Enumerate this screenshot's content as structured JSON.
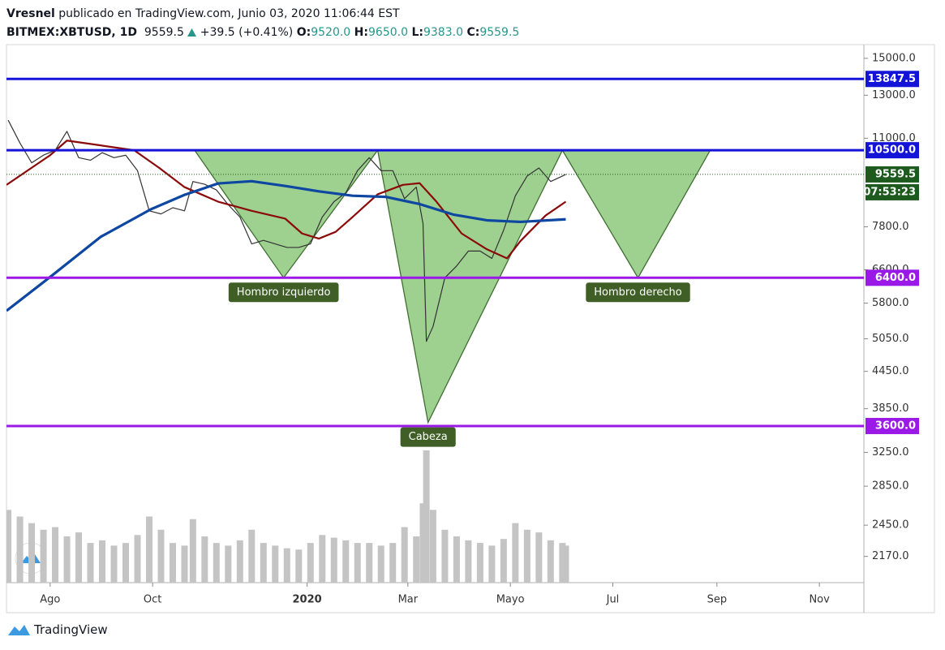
{
  "header": {
    "author": "Vresnel",
    "published": "publicado en TradingView.com, Junio 03, 2020 11:06:44 EST",
    "symbol": "BITMEX:XBTUSD, 1D",
    "price": "9559.5",
    "change": "+39.5 (+0.41%)",
    "ohlc": [
      {
        "key": "O:",
        "value": "9520.0"
      },
      {
        "key": "H:",
        "value": "9650.0"
      },
      {
        "key": "L:",
        "value": "9383.0"
      },
      {
        "key": "C:",
        "value": "9559.5"
      }
    ]
  },
  "chart_data": {
    "type": "line",
    "log_scale": true,
    "xlim": [
      -26,
      484.5
    ],
    "ylim": [
      1960,
      15820
    ],
    "xticks": [
      {
        "value": 0,
        "label": "Ago"
      },
      {
        "value": 61,
        "label": "Oct"
      },
      {
        "value": 153,
        "label": "2020"
      },
      {
        "value": 213,
        "label": "Mar"
      },
      {
        "value": 274,
        "label": "Mayo"
      },
      {
        "value": 335,
        "label": "Jul"
      },
      {
        "value": 397,
        "label": "Sep"
      },
      {
        "value": 458,
        "label": "Nov"
      }
    ],
    "yticks": [
      {
        "value": 15000,
        "label": "15000.0"
      },
      {
        "value": 13000,
        "label": "13000.0"
      },
      {
        "value": 11000,
        "label": "11000.0"
      },
      {
        "value": 7800,
        "label": "7800.0"
      },
      {
        "value": 6600,
        "label": "6600.0"
      },
      {
        "value": 5800,
        "label": "5800.0"
      },
      {
        "value": 5050,
        "label": "5050.0"
      },
      {
        "value": 4450,
        "label": "4450.0"
      },
      {
        "value": 3850,
        "label": "3850.0"
      },
      {
        "value": 3250,
        "label": "3250.0"
      },
      {
        "value": 2850,
        "label": "2850.0"
      },
      {
        "value": 2450,
        "label": "2450.0"
      },
      {
        "value": 2170,
        "label": "2170.0"
      }
    ],
    "series": [
      {
        "color": "#333333",
        "width": 1.2,
        "x": [
          -25,
          -18,
          -11,
          -4,
          3,
          10,
          17,
          24,
          31,
          38,
          45,
          52,
          59,
          66,
          73,
          80,
          85,
          92,
          99,
          106,
          113,
          120,
          127,
          134,
          141,
          148,
          155,
          162,
          169,
          176,
          183,
          190,
          197,
          204,
          211,
          218,
          222,
          224,
          228,
          235,
          242,
          249,
          256,
          263,
          270,
          277,
          284,
          291,
          298,
          305,
          307
        ],
        "values": [
          11800,
          10800,
          10000,
          10300,
          10500,
          11300,
          10200,
          10100,
          10400,
          10200,
          10300,
          9700,
          8300,
          8200,
          8400,
          8300,
          9300,
          9200,
          9000,
          8500,
          8100,
          7300,
          7400,
          7300,
          7200,
          7200,
          7300,
          8100,
          8600,
          8900,
          9700,
          10200,
          9700,
          9700,
          8700,
          9100,
          7900,
          5000,
          5300,
          6400,
          6700,
          7100,
          7100,
          6900,
          7700,
          8800,
          9500,
          9800,
          9300,
          9500,
          9559.5
        ]
      },
      {
        "color": "#8b0a0a",
        "width": 2.2,
        "x": [
          -26,
          0,
          10,
          30,
          50,
          65,
          80,
          100,
          120,
          140,
          150,
          160,
          170,
          180,
          195,
          210,
          220,
          230,
          245,
          260,
          272,
          280,
          295,
          307
        ],
        "values": [
          9180,
          10300,
          10900,
          10700,
          10500,
          9800,
          9100,
          8600,
          8300,
          8050,
          7600,
          7450,
          7650,
          8100,
          8850,
          9180,
          9240,
          8600,
          7600,
          7150,
          6900,
          7380,
          8150,
          8600
        ]
      },
      {
        "color": "#0d47a1",
        "width": 3.2,
        "x": [
          -26,
          0,
          30,
          60,
          80,
          100,
          120,
          140,
          160,
          180,
          200,
          220,
          240,
          260,
          280,
          307
        ],
        "values": [
          5630,
          6420,
          7500,
          8350,
          8830,
          9230,
          9310,
          9140,
          8950,
          8800,
          8760,
          8520,
          8180,
          8000,
          7950,
          8030
        ]
      }
    ],
    "volume": {
      "color": "#c4c4c4",
      "vlim": [
        0,
        100
      ],
      "x": [
        -25,
        -18,
        -11,
        -4,
        3,
        10,
        17,
        24,
        31,
        38,
        45,
        52,
        59,
        66,
        73,
        80,
        85,
        92,
        99,
        106,
        113,
        120,
        127,
        134,
        141,
        148,
        155,
        162,
        169,
        176,
        183,
        190,
        197,
        204,
        211,
        218,
        222,
        224,
        228,
        235,
        242,
        249,
        256,
        263,
        270,
        277,
        284,
        291,
        298,
        305,
        307
      ],
      "values": [
        55,
        50,
        45,
        40,
        42,
        35,
        38,
        30,
        32,
        28,
        30,
        36,
        50,
        40,
        30,
        28,
        48,
        35,
        30,
        28,
        32,
        40,
        30,
        28,
        26,
        25,
        30,
        36,
        34,
        32,
        30,
        30,
        28,
        30,
        42,
        35,
        60,
        100,
        55,
        40,
        35,
        32,
        30,
        28,
        33,
        45,
        40,
        38,
        32,
        30,
        28
      ]
    },
    "levels": [
      {
        "value": 13847.5,
        "label": "13847.5",
        "color": "#1414d8"
      },
      {
        "value": 10500,
        "label": "10500.0",
        "color": "#1414d8"
      },
      {
        "value": 6400,
        "label": "6400.0",
        "color": "#9b19e6"
      },
      {
        "value": 3600,
        "label": "3600.0",
        "color": "#9b19e6"
      }
    ],
    "last_price": {
      "value": 9559.5,
      "label": "9559.5",
      "countdown": "07:53:23",
      "color": "#1e5a1e"
    },
    "patterns": [
      {
        "label": "Hombro izquierdo",
        "x": [
          86,
          139,
          195
        ],
        "values": [
          10500,
          6400,
          10500
        ]
      },
      {
        "label": "Cabeza",
        "x": [
          195,
          225,
          305
        ],
        "values": [
          10500,
          3650,
          10500
        ]
      },
      {
        "label": "Hombro derecho",
        "x": [
          305,
          350,
          393
        ],
        "values": [
          10500,
          6400,
          10500
        ]
      }
    ]
  },
  "footer": {
    "brand": "TradingView"
  }
}
